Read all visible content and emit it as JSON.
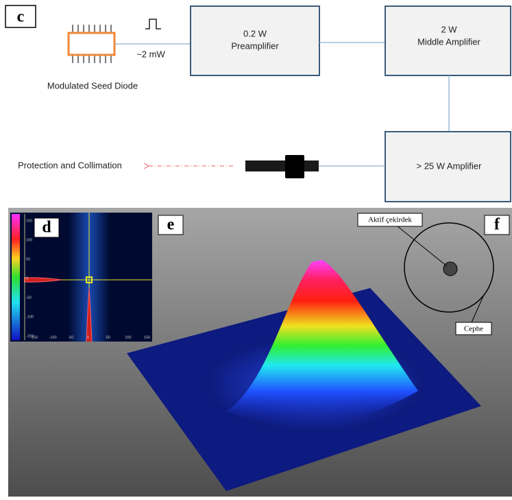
{
  "panel_labels": {
    "c": "c",
    "d": "d",
    "e": "e",
    "f": "f"
  },
  "diagram": {
    "seed": {
      "label": "Modulated Seed Diode",
      "power": "~2 mW"
    },
    "preamplifier": {
      "power": "0.2 W",
      "label": "Preamplifier"
    },
    "middle_amplifier": {
      "power": "2 W",
      "label": "Middle Amplifier"
    },
    "final_amplifier": {
      "label": "> 25 W Amplifier"
    },
    "output": {
      "label": "Protection and Collimation"
    }
  },
  "profile_plot": {
    "yticks": [
      "150",
      "100",
      "50",
      "0",
      "-50",
      "-100",
      "-150"
    ],
    "xticks": [
      "-150",
      "-100",
      "-50",
      "0",
      "50",
      "100",
      "150"
    ]
  },
  "fiber": {
    "core": "Aktif çekirdek",
    "cladding": "Cephe"
  }
}
